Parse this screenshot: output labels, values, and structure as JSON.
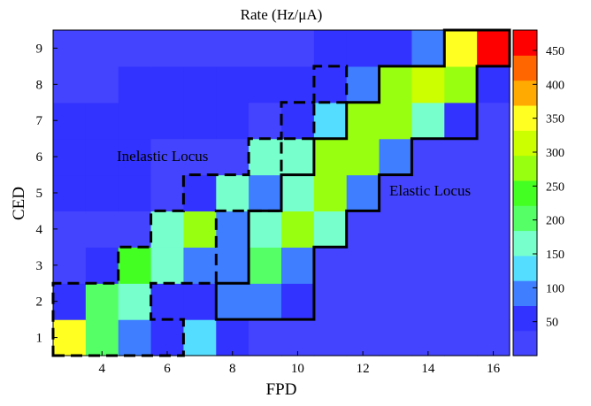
{
  "chart_data": {
    "type": "heatmap",
    "title": "Rate (Hz/μA)",
    "xlabel": "FPD",
    "ylabel": "CED",
    "x": [
      3,
      4,
      5,
      6,
      7,
      8,
      9,
      10,
      11,
      12,
      13,
      14,
      15,
      16
    ],
    "y": [
      1,
      2,
      3,
      4,
      5,
      6,
      7,
      8,
      9
    ],
    "x_ticks": [
      "4",
      "6",
      "8",
      "10",
      "12",
      "14",
      "16"
    ],
    "y_ticks": [
      "1",
      "2",
      "3",
      "4",
      "5",
      "6",
      "7",
      "8",
      "9"
    ],
    "colorbar": {
      "ticks": [
        "50",
        "100",
        "150",
        "200",
        "250",
        "300",
        "350",
        "400",
        "450"
      ],
      "range": [
        0,
        480
      ],
      "colors": [
        "#4444ff",
        "#3333ff",
        "#3f7fff",
        "#55ddff",
        "#77ffcc",
        "#55ff66",
        "#44ff22",
        "#99ff11",
        "#ccff00",
        "#ffff22",
        "#ffaa00",
        "#ff6600",
        "#ff0000"
      ]
    },
    "values": [
      [
        350,
        190,
        110,
        60,
        140,
        40,
        15,
        15,
        15,
        15,
        15,
        15,
        15,
        15
      ],
      [
        50,
        220,
        160,
        60,
        55,
        105,
        105,
        50,
        30,
        15,
        15,
        15,
        15,
        15
      ],
      [
        25,
        40,
        240,
        180,
        110,
        105,
        220,
        100,
        30,
        15,
        15,
        15,
        15,
        15
      ],
      [
        30,
        25,
        30,
        170,
        260,
        100,
        170,
        260,
        170,
        15,
        15,
        15,
        15,
        15
      ],
      [
        40,
        40,
        40,
        25,
        50,
        165,
        100,
        165,
        260,
        100,
        15,
        15,
        15,
        15
      ],
      [
        60,
        40,
        40,
        35,
        35,
        35,
        150,
        150,
        260,
        260,
        100,
        15,
        15,
        15
      ],
      [
        40,
        40,
        40,
        40,
        40,
        40,
        30,
        40,
        140,
        260,
        260,
        150,
        40,
        15
      ],
      [
        25,
        25,
        40,
        40,
        40,
        40,
        40,
        40,
        40,
        110,
        260,
        330,
        260,
        40
      ],
      [
        25,
        25,
        25,
        25,
        25,
        25,
        25,
        25,
        45,
        45,
        45,
        110,
        355,
        480
      ]
    ],
    "annotations": [
      "Inelastic Locus",
      "Elastic Locus"
    ],
    "grid": false
  }
}
